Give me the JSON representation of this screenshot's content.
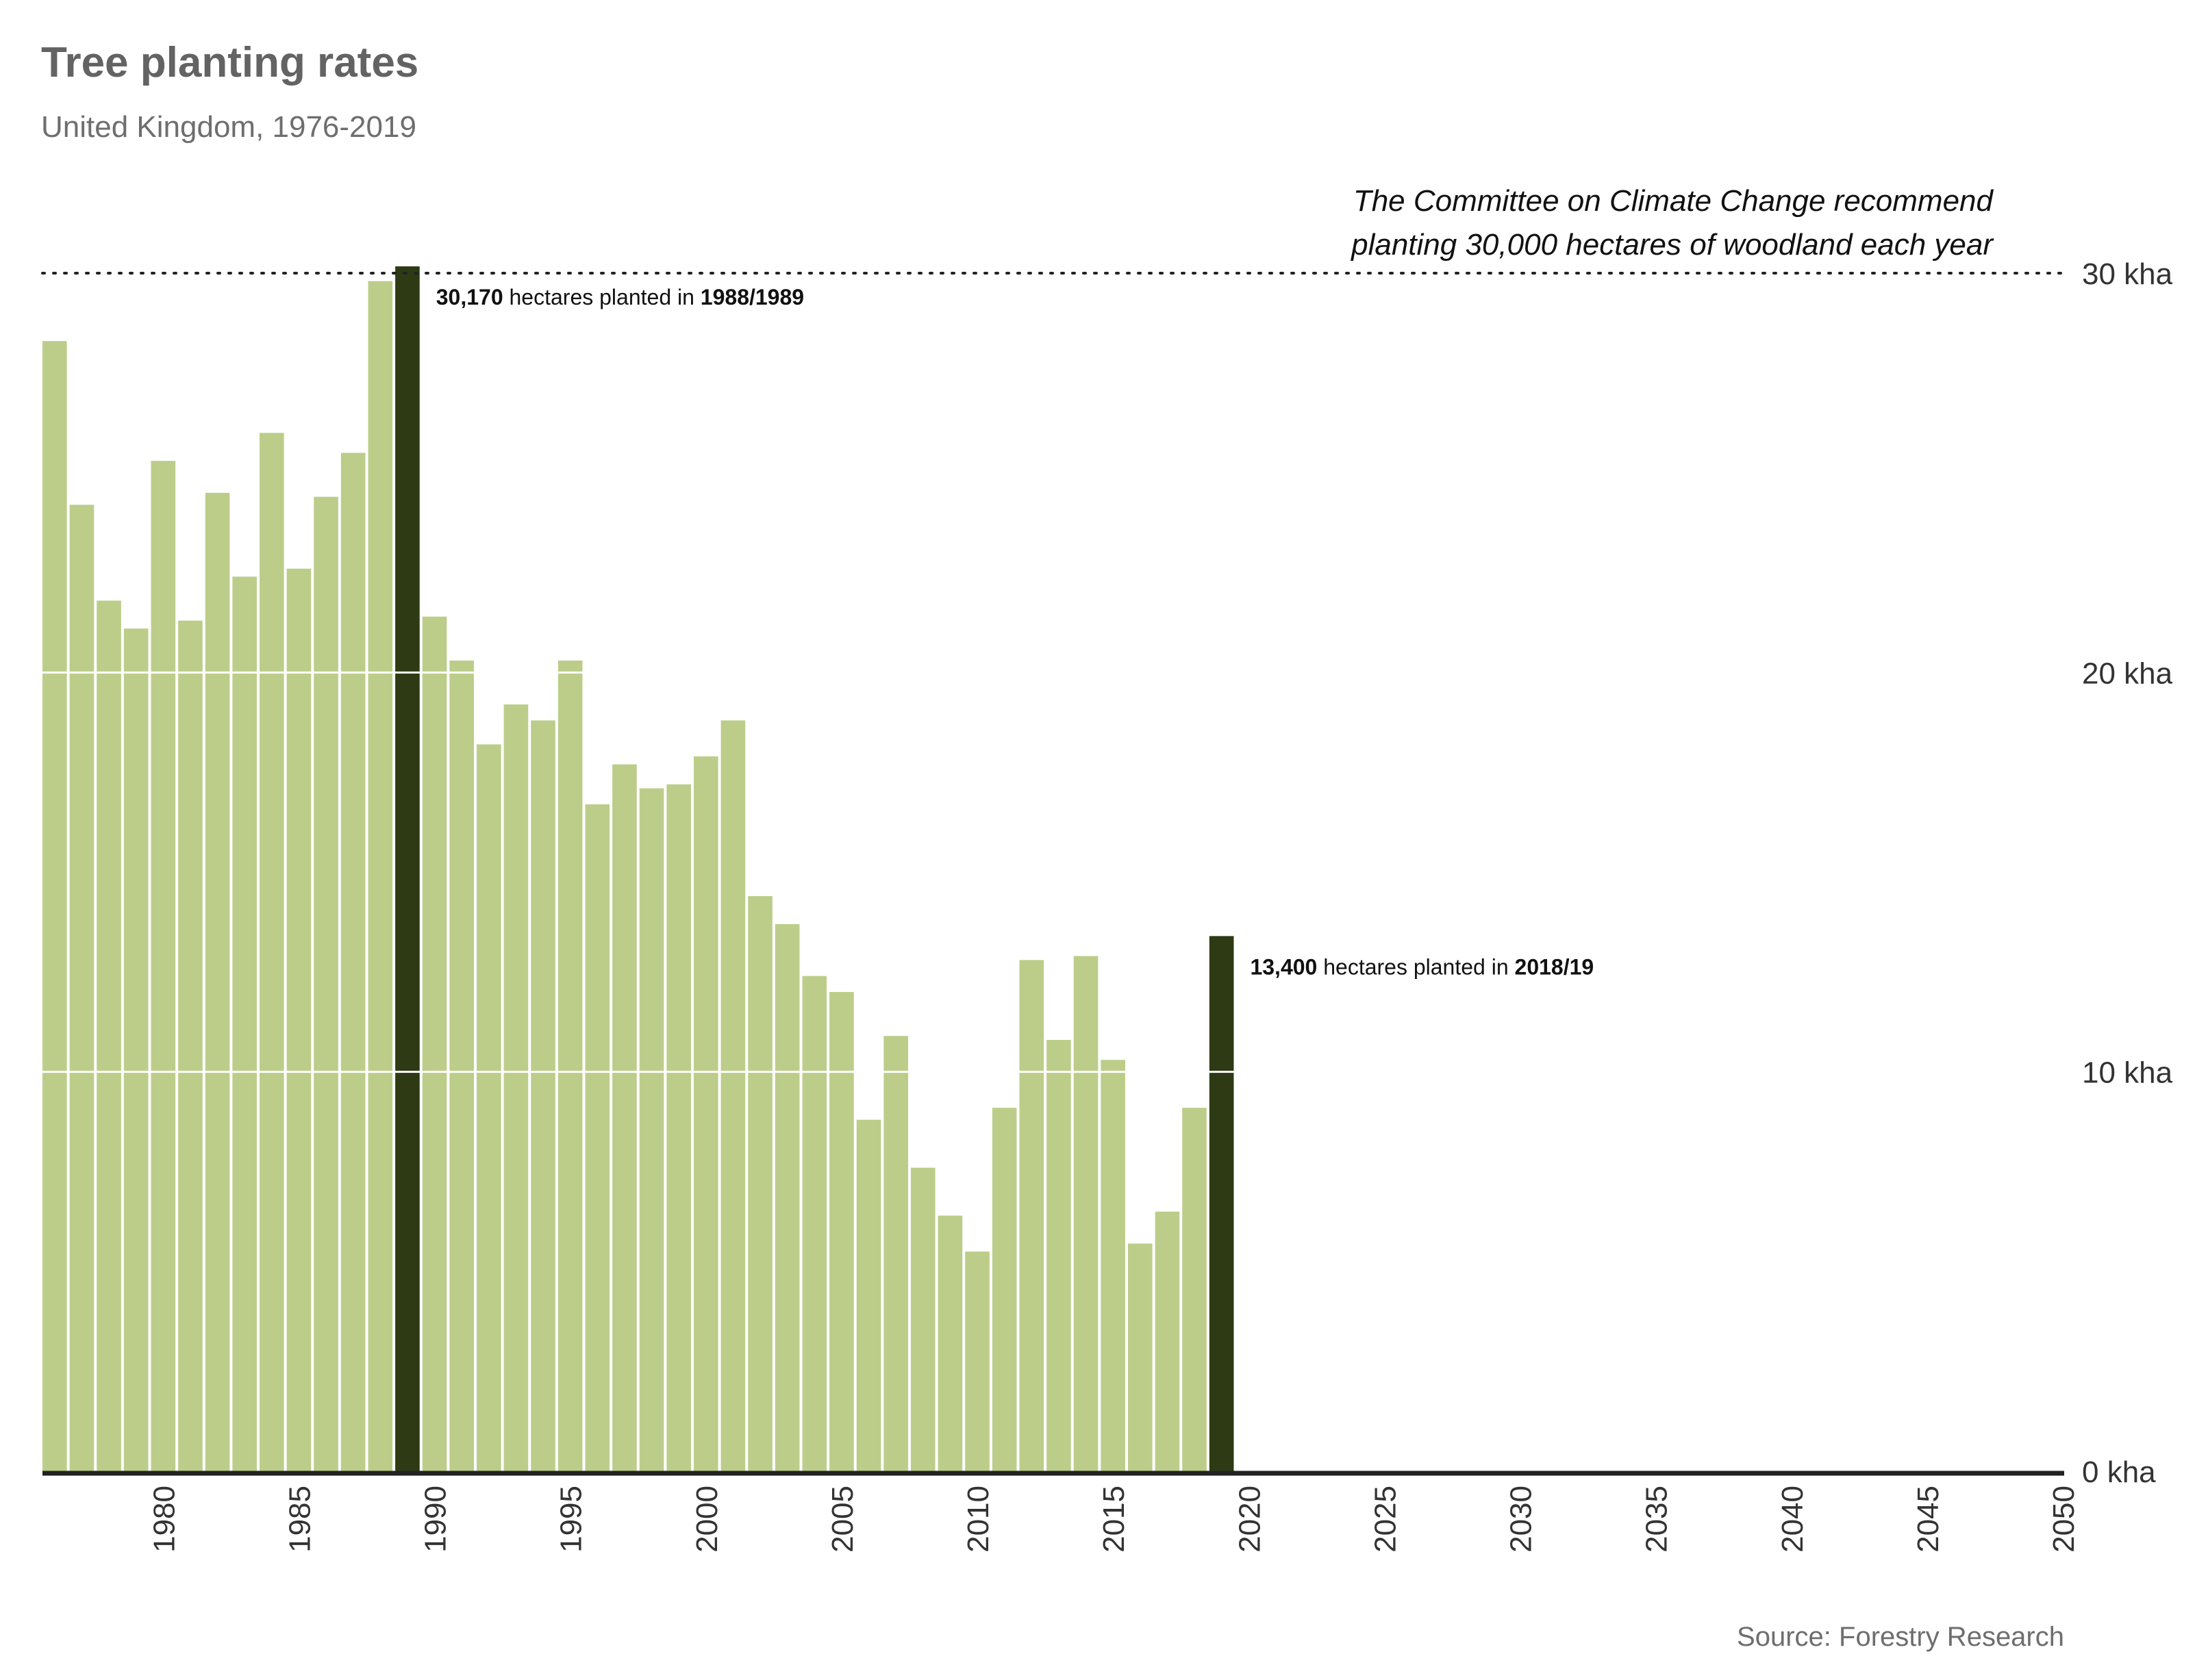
{
  "header": {
    "title": "Tree planting rates",
    "subtitle": "United Kingdom, 1976-2019"
  },
  "note": {
    "line1": "The Committee on Climate Change recommend",
    "line2": "planting 30,000 hectares of woodland each year"
  },
  "annotations": {
    "peak": {
      "value": "30,170",
      "mid": " hectares planted in ",
      "period": "1988/1989"
    },
    "latest": {
      "value": "13,400",
      "mid": " hectares planted in ",
      "period": "2018/19"
    }
  },
  "source": "Source: Forestry Research",
  "colors": {
    "bar": "#bccd8a",
    "highlight": "#2d3a14",
    "baseline": "#222222",
    "target_line": "#222222",
    "gridline": "#ffffff"
  },
  "chart_data": {
    "type": "bar",
    "title": "Tree planting rates",
    "subtitle": "United Kingdom, 1976-2019",
    "xlabel": "",
    "ylabel": "",
    "x": [
      1976,
      1977,
      1978,
      1979,
      1980,
      1981,
      1982,
      1983,
      1984,
      1985,
      1986,
      1987,
      1988,
      1989,
      1990,
      1991,
      1992,
      1993,
      1994,
      1995,
      1996,
      1997,
      1998,
      1999,
      2000,
      2001,
      2002,
      2003,
      2004,
      2005,
      2006,
      2007,
      2008,
      2009,
      2010,
      2011,
      2012,
      2013,
      2014,
      2015,
      2016,
      2017,
      2018,
      2019
    ],
    "values": [
      28.3,
      24.2,
      21.8,
      21.1,
      25.3,
      21.3,
      24.5,
      22.4,
      26.0,
      22.6,
      24.4,
      25.5,
      29.8,
      30.17,
      21.4,
      20.3,
      18.2,
      19.2,
      18.8,
      20.3,
      16.7,
      17.7,
      17.1,
      17.2,
      17.9,
      18.8,
      14.4,
      13.7,
      12.4,
      12.0,
      8.8,
      10.9,
      7.6,
      6.4,
      5.5,
      9.1,
      12.8,
      10.8,
      12.9,
      10.3,
      5.7,
      6.5,
      9.1,
      13.4
    ],
    "highlighted_x": [
      1989,
      2019
    ],
    "xlim": [
      1975.5,
      2050
    ],
    "x_ticks": [
      1980,
      1985,
      1990,
      1995,
      2000,
      2005,
      2010,
      2015,
      2020,
      2025,
      2030,
      2035,
      2040,
      2045,
      2050
    ],
    "ylim": [
      0,
      30
    ],
    "y_ticks": [
      0,
      10,
      20,
      30
    ],
    "y_tick_labels": [
      "0 kha",
      "10 kha",
      "20 kha",
      "30 kha"
    ],
    "reference_line": {
      "value": 30,
      "style": "dotted"
    },
    "grid": true,
    "legend": "none"
  }
}
